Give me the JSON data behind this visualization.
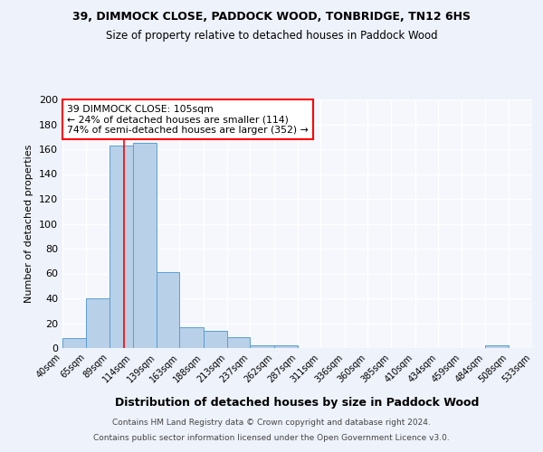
{
  "title1": "39, DIMMOCK CLOSE, PADDOCK WOOD, TONBRIDGE, TN12 6HS",
  "title2": "Size of property relative to detached houses in Paddock Wood",
  "xlabel": "Distribution of detached houses by size in Paddock Wood",
  "ylabel": "Number of detached properties",
  "bin_edges": [
    40,
    65,
    89,
    114,
    139,
    163,
    188,
    213,
    237,
    262,
    287,
    311,
    336,
    360,
    385,
    410,
    434,
    459,
    484,
    508,
    533
  ],
  "bin_heights": [
    8,
    40,
    163,
    165,
    61,
    17,
    14,
    9,
    2,
    2,
    0,
    0,
    0,
    0,
    0,
    0,
    0,
    0,
    2,
    0
  ],
  "bar_color": "#b8d0e8",
  "bar_edge_color": "#5a9fd4",
  "red_line_x": 105,
  "annotation_line1": "39 DIMMOCK CLOSE: 105sqm",
  "annotation_line2": "← 24% of detached houses are smaller (114)",
  "annotation_line3": "74% of semi-detached houses are larger (352) →",
  "ylim": [
    0,
    200
  ],
  "yticks": [
    0,
    20,
    40,
    60,
    80,
    100,
    120,
    140,
    160,
    180,
    200
  ],
  "tick_labels": [
    "40sqm",
    "65sqm",
    "89sqm",
    "114sqm",
    "139sqm",
    "163sqm",
    "188sqm",
    "213sqm",
    "237sqm",
    "262sqm",
    "287sqm",
    "311sqm",
    "336sqm",
    "360sqm",
    "385sqm",
    "410sqm",
    "434sqm",
    "459sqm",
    "484sqm",
    "508sqm",
    "533sqm"
  ],
  "footer1": "Contains HM Land Registry data © Crown copyright and database right 2024.",
  "footer2": "Contains public sector information licensed under the Open Government Licence v3.0.",
  "bg_color": "#eef2fb",
  "plot_bg_color": "#f5f7fd",
  "grid_color": "#ffffff"
}
